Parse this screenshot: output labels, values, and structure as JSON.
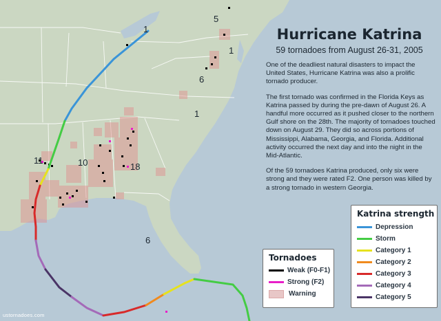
{
  "title": "Hurricane Katrina",
  "subtitle": "59 tornadoes from August 26-31, 2005",
  "description": [
    "One of the deadliest natural disasters to impact the United States, Hurricane Katrina was also a prolific tornado producer.",
    "The first tornado was confirmed in the Florida Keys as Katrina passed by during the pre-dawn of August 26. A handful more occurred as it pushed closer to the northern Gulf shore on the 28th. The majority of tornadoes touched down on August 29. They did so across portions of Mississippi, Alabama, Georgia, and Florida. Additional activity occurred the next day and into the night in the Mid-Atlantic.",
    "Of the 59 tornadoes Katrina produced, only six were strong and they were rated F2. One person was killed by a strong tornado in western Georgia."
  ],
  "state_counts": [
    {
      "label": "1",
      "state": "Ohio"
    },
    {
      "label": "5",
      "state": "Pennsylvania"
    },
    {
      "label": "1",
      "state": "Maryland"
    },
    {
      "label": "6",
      "state": "Virginia"
    },
    {
      "label": "1",
      "state": "South Carolina"
    },
    {
      "label": "11",
      "state": "Louisiana"
    },
    {
      "label": "10",
      "state": "Mississippi"
    },
    {
      "label": "18",
      "state": "Georgia"
    },
    {
      "label": "6",
      "state": "Florida"
    }
  ],
  "tornado_legend": {
    "title": "Tornadoes",
    "items": [
      {
        "label": "Weak (F0-F1)",
        "color": "#000000"
      },
      {
        "label": "Strong (F2)",
        "color": "#e81ec8"
      },
      {
        "label": "Warning",
        "color": "#e8c7c7"
      }
    ]
  },
  "strength_legend": {
    "title": "Katrina strength",
    "items": [
      {
        "label": "Depression",
        "color": "#3a94d8"
      },
      {
        "label": "Storm",
        "color": "#44cc44"
      },
      {
        "label": "Category 1",
        "color": "#e6e21e"
      },
      {
        "label": "Category 2",
        "color": "#f08a1e"
      },
      {
        "label": "Category 3",
        "color": "#d82a2a"
      },
      {
        "label": "Category 4",
        "color": "#a46ab8"
      },
      {
        "label": "Category 5",
        "color": "#4a3466"
      }
    ]
  },
  "footer": "ustornadoes.com"
}
